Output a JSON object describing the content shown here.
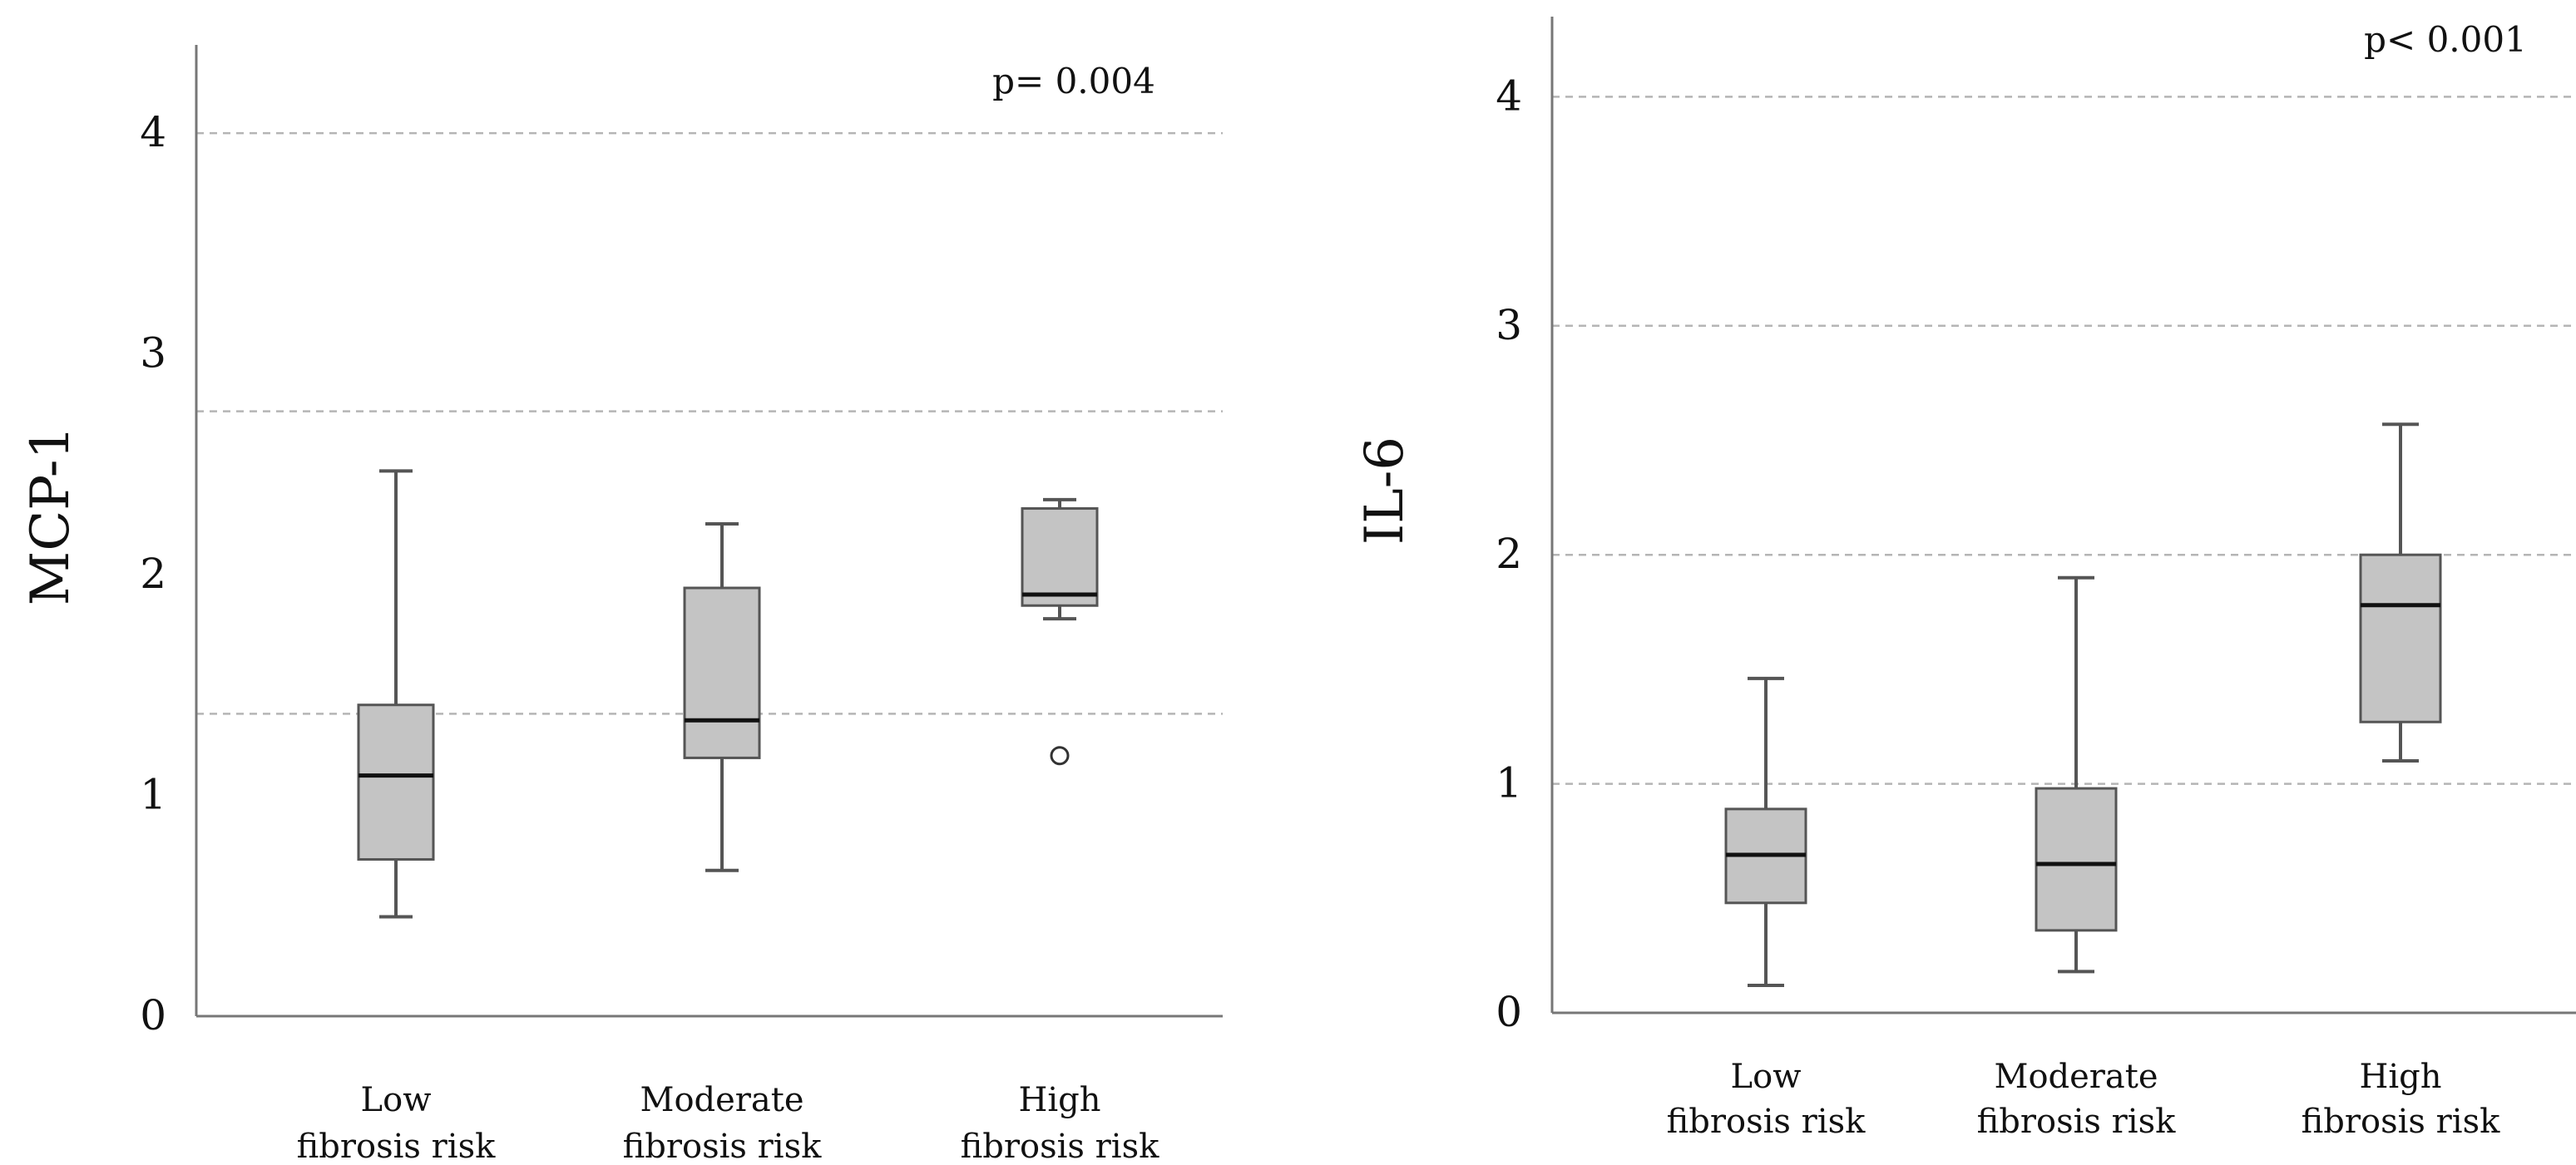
{
  "chart_data": [
    {
      "type": "boxplot",
      "title": "",
      "ylabel": "MCP-1",
      "xlabel": "",
      "ylim": [
        0,
        4.4
      ],
      "yticks": [
        "0",
        "1",
        "2",
        "3",
        "4"
      ],
      "grid_values": [
        1.37,
        2.74,
        4.0
      ],
      "p_value": "p= 0.004",
      "categories": [
        [
          "Low",
          "fibrosis risk"
        ],
        [
          "Moderate",
          "fibrosis risk"
        ],
        [
          "High",
          "fibrosis risk"
        ]
      ],
      "boxes": [
        {
          "whisker_low": 0.45,
          "q1": 0.71,
          "median": 1.09,
          "q3": 1.41,
          "whisker_high": 2.47,
          "outliers": []
        },
        {
          "whisker_low": 0.66,
          "q1": 1.17,
          "median": 1.34,
          "q3": 1.94,
          "whisker_high": 2.23,
          "outliers": []
        },
        {
          "whisker_low": 1.8,
          "q1": 1.86,
          "median": 1.91,
          "q3": 2.3,
          "whisker_high": 2.34,
          "outliers": [
            1.18
          ]
        }
      ],
      "colors": {
        "box": "#c4c4c4",
        "box_edge": "#555555",
        "median": "#111111",
        "grid": "#b5b5b5",
        "axis": "#777777"
      }
    },
    {
      "type": "boxplot",
      "title": "",
      "ylabel": "IL-6",
      "xlabel": "",
      "ylim": [
        0,
        4.35
      ],
      "yticks": [
        "0",
        "1",
        "2",
        "3",
        "4"
      ],
      "grid_values": [
        1.0,
        2.0,
        3.0,
        4.0
      ],
      "p_value": "p< 0.001",
      "categories": [
        [
          "Low",
          "fibrosis risk"
        ],
        [
          "Moderate",
          "fibrosis risk"
        ],
        [
          "High",
          "fibrosis risk"
        ]
      ],
      "boxes": [
        {
          "whisker_low": 0.12,
          "q1": 0.48,
          "median": 0.69,
          "q3": 0.89,
          "whisker_high": 1.46,
          "outliers": []
        },
        {
          "whisker_low": 0.18,
          "q1": 0.36,
          "median": 0.65,
          "q3": 0.98,
          "whisker_high": 1.9,
          "outliers": []
        },
        {
          "whisker_low": 1.1,
          "q1": 1.27,
          "median": 1.78,
          "q3": 2.0,
          "whisker_high": 2.57,
          "outliers": []
        }
      ],
      "colors": {
        "box": "#c4c4c4",
        "box_edge": "#555555",
        "median": "#111111",
        "grid": "#b5b5b5",
        "axis": "#777777"
      }
    }
  ]
}
